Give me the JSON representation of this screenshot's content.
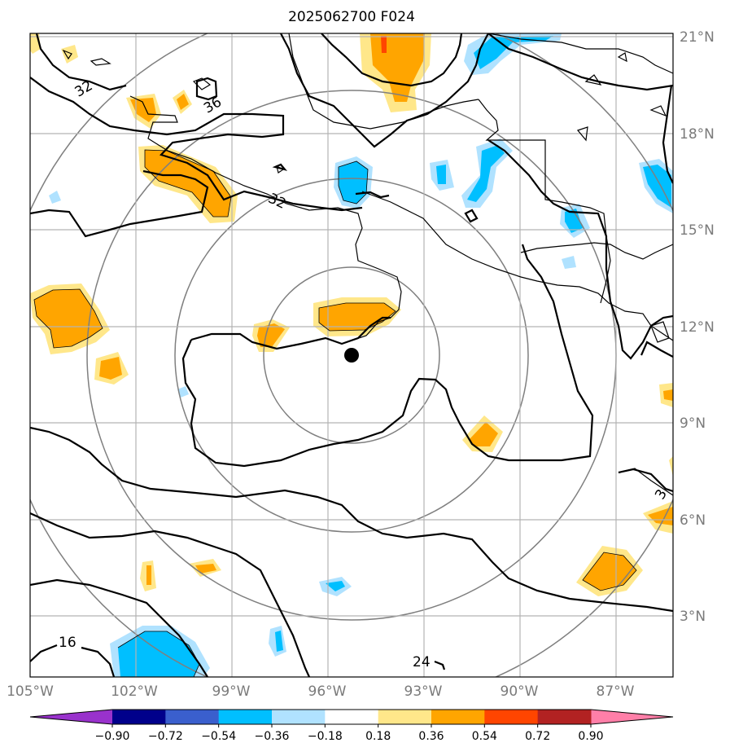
{
  "title": "2025062700 F024",
  "map": {
    "lon_range": [
      -105,
      -84.3
    ],
    "lat_range": [
      1.2,
      21.2
    ],
    "lon_ticks": [
      "105°W",
      "102°W",
      "99°W",
      "96°W",
      "93°W",
      "90°W",
      "87°W"
    ],
    "lat_ticks": [
      "21°N",
      "18°N",
      "15°N",
      "12°N",
      "9°N",
      "6°N",
      "3°N"
    ],
    "center_marker": {
      "lon": -95.7,
      "lat": 11.1
    },
    "range_rings": 4,
    "grid": true
  },
  "contour_labels": [
    "32",
    "36",
    "32",
    "16",
    "24",
    "3"
  ],
  "colorbar": {
    "ticks": [
      "−0.90",
      "−0.72",
      "−0.54",
      "−0.36",
      "−0.18",
      "0.18",
      "0.36",
      "0.54",
      "0.72",
      "0.90"
    ],
    "colors": [
      "#9932cc",
      "#00008b",
      "#3a5fcd",
      "#00bfff",
      "#b0e2ff",
      "#ffffff",
      "#ffe78a",
      "#ffa500",
      "#ff4500",
      "#b22222",
      "#ff7fa8"
    ],
    "extend": "both"
  }
}
